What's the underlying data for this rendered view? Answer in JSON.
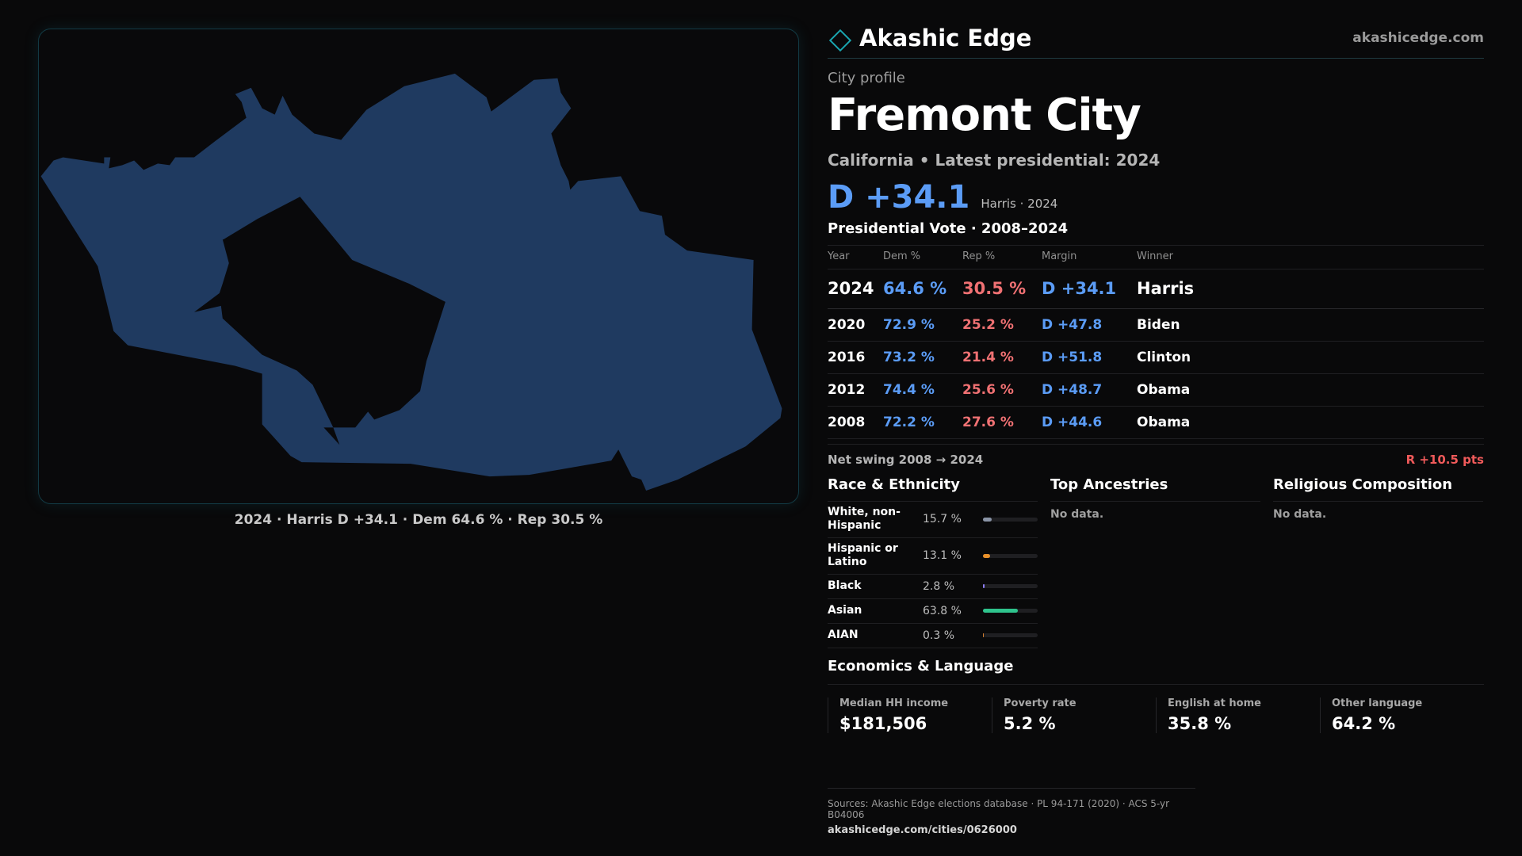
{
  "map": {
    "caption": "2024 · Harris D +34.1 · Dem 64.6 % · Rep 30.5 %",
    "fill_color": "#1f3a60"
  },
  "header": {
    "brand": "Akashic Edge",
    "url": "akashicedge.com"
  },
  "profile": {
    "kicker": "City profile",
    "title": "Fremont City",
    "subline": "California • Latest presidential: 2024",
    "margin": "D +34.1",
    "margin_note": "Harris · 2024"
  },
  "votes": {
    "title": "Presidential Vote · 2008–2024",
    "headers": {
      "year": "Year",
      "dem": "Dem %",
      "rep": "Rep %",
      "margin": "Margin",
      "winner": "Winner"
    },
    "rows": [
      {
        "year": "2024",
        "dem": "64.6 %",
        "rep": "30.5 %",
        "margin": "D +34.1",
        "winner": "Harris"
      },
      {
        "year": "2020",
        "dem": "72.9 %",
        "rep": "25.2 %",
        "margin": "D +47.8",
        "winner": "Biden"
      },
      {
        "year": "2016",
        "dem": "73.2 %",
        "rep": "21.4 %",
        "margin": "D +51.8",
        "winner": "Clinton"
      },
      {
        "year": "2012",
        "dem": "74.4 %",
        "rep": "25.6 %",
        "margin": "D +48.7",
        "winner": "Obama"
      },
      {
        "year": "2008",
        "dem": "72.2 %",
        "rep": "27.6 %",
        "margin": "D +44.6",
        "winner": "Obama"
      }
    ],
    "swing_label": "Net swing 2008 → 2024",
    "swing_value": "R +10.5 pts"
  },
  "race": {
    "title": "Race & Ethnicity",
    "items": [
      {
        "label": "White, non-Hispanic",
        "pct": "15.7 %",
        "fraction": 0.157,
        "color": "#8a94a6"
      },
      {
        "label": "Hispanic or Latino",
        "pct": "13.1 %",
        "fraction": 0.131,
        "color": "#e8902a"
      },
      {
        "label": "Black",
        "pct": "2.8 %",
        "fraction": 0.028,
        "color": "#8b7cf6"
      },
      {
        "label": "Asian",
        "pct": "63.8 %",
        "fraction": 0.638,
        "color": "#2fc48d"
      },
      {
        "label": "AIAN",
        "pct": "0.3 %",
        "fraction": 0.003,
        "color": "#d7802e"
      }
    ]
  },
  "ancestries": {
    "title": "Top Ancestries",
    "empty": "No data."
  },
  "religion": {
    "title": "Religious Composition",
    "empty": "No data."
  },
  "economics": {
    "title": "Economics & Language",
    "items": [
      {
        "label": "Median HH income",
        "value": "$181,506"
      },
      {
        "label": "Poverty rate",
        "value": "5.2 %"
      },
      {
        "label": "English at home",
        "value": "35.8 %"
      },
      {
        "label": "Other language",
        "value": "64.2 %"
      }
    ]
  },
  "footer": {
    "sources": "Sources: Akashic Edge elections database · PL 94-171 (2020) · ACS 5-yr B04006",
    "url": "akashicedge.com/cities/0626000"
  }
}
